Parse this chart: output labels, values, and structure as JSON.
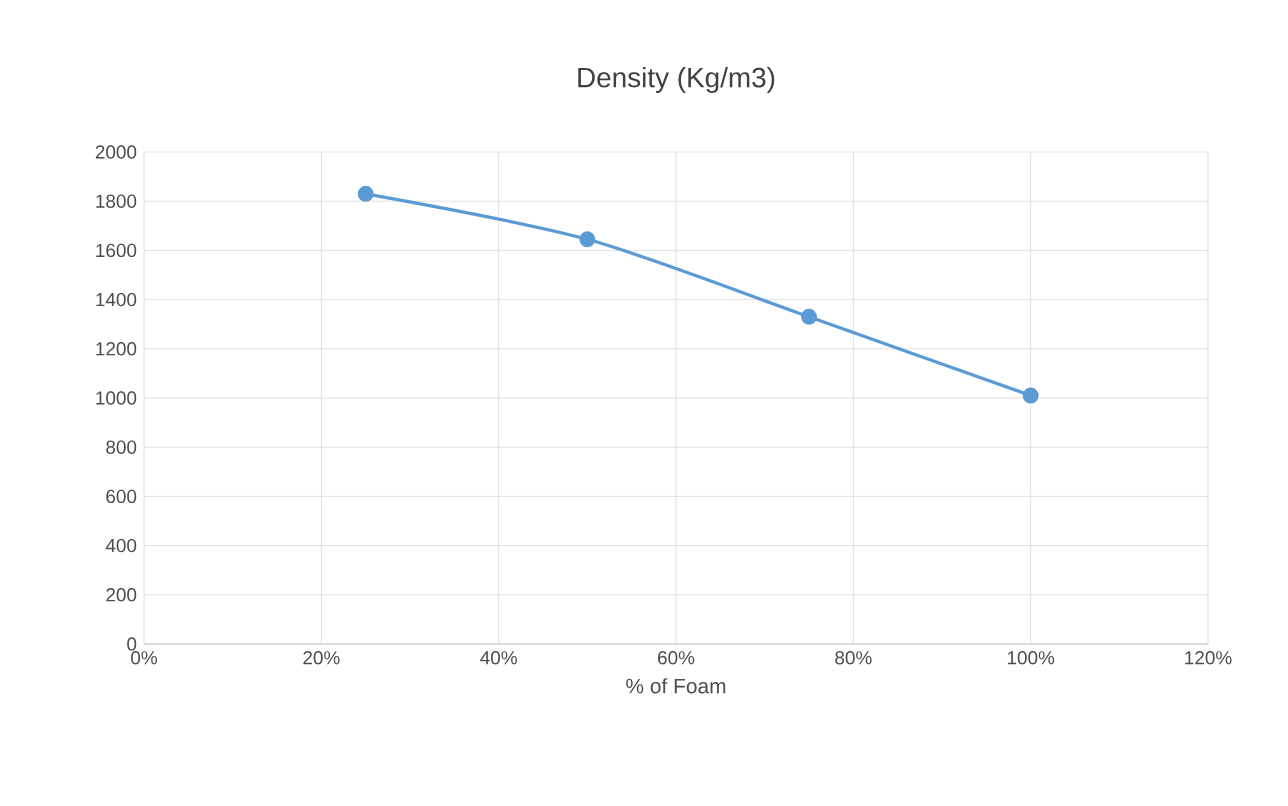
{
  "chart_data": {
    "type": "line",
    "title": "Density (Kg/m3)",
    "xlabel": "% of Foam",
    "x": [
      25,
      50,
      75,
      100
    ],
    "series": [
      {
        "color": "#5b9bd5",
        "values": [
          1830,
          1645,
          1330,
          1010
        ]
      }
    ],
    "xlim": [
      0,
      120
    ],
    "xticks": [
      {
        "value": 0,
        "label": "0%"
      },
      {
        "value": 20,
        "label": "20%"
      },
      {
        "value": 40,
        "label": "40%"
      },
      {
        "value": 60,
        "label": "60%"
      },
      {
        "value": 80,
        "label": "80%"
      },
      {
        "value": 100,
        "label": "100%"
      },
      {
        "value": 120,
        "label": "120%"
      }
    ],
    "ylim": [
      0,
      2000
    ],
    "yticks": [
      0,
      200,
      400,
      600,
      800,
      1000,
      1200,
      1400,
      1600,
      1800,
      2000
    ],
    "grid": true,
    "marker": "circle",
    "line_style": "solid"
  }
}
